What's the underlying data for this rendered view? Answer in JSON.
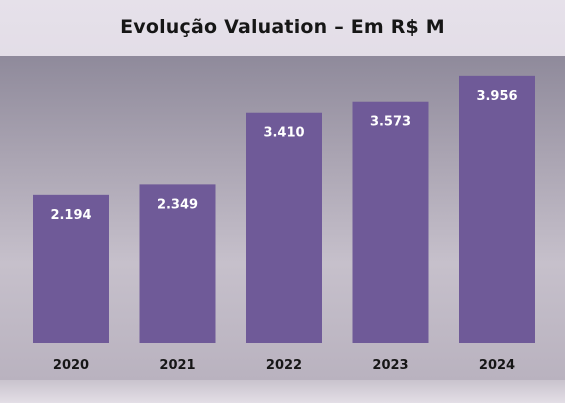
{
  "chart_data": {
    "type": "bar",
    "title": "Evolução Valuation – Em R$ M",
    "categories": [
      "2020",
      "2021",
      "2022",
      "2023",
      "2024"
    ],
    "values": [
      2194,
      2349,
      3410,
      3573,
      3956
    ],
    "value_labels": [
      "2.194",
      "2.349",
      "3.410",
      "3.573",
      "3.956"
    ],
    "ylim": [
      0,
      4250
    ],
    "grid": false,
    "legend": "none",
    "colors": {
      "bar": "#6f5a98",
      "value_label": "#ffffff",
      "category_label": "#161616"
    }
  }
}
